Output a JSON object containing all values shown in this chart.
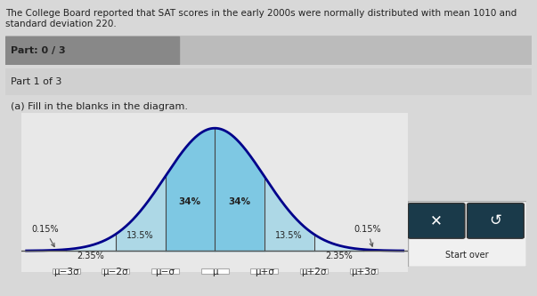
{
  "title": "The College Board reported that SAT scores in the early 2000s were normally distributed with mean 1010 and standard deviation 220.",
  "mean": 1010,
  "std": 220,
  "part_label": "Part: 0 / 3",
  "part1_label": "Part 1 of 3",
  "instruction": "(a) Fill in the blanks in the diagram.",
  "x_labels": [
    "μ−3σ",
    "μ−2σ",
    "μ−σ",
    "μ",
    "μ+σ",
    "μ+2σ",
    "μ+3σ"
  ],
  "percentages": [
    "0.15%",
    "2.35%",
    "13.5%",
    "34%",
    "34%",
    "13.5%",
    "2.35%",
    "0.15%"
  ],
  "pct_positions": [
    0,
    1,
    2,
    3,
    3,
    4,
    5,
    6
  ],
  "bg_color": "#d8d8d8",
  "panel_color": "#e8e8e8",
  "curve_color": "#00008B",
  "fill_color": "#add8e6",
  "fill_dark_color": "#7ec8e3",
  "axis_line_color": "#555555",
  "text_color": "#222222",
  "box_color": "#ffffff",
  "box_border_color": "#aaaaaa"
}
